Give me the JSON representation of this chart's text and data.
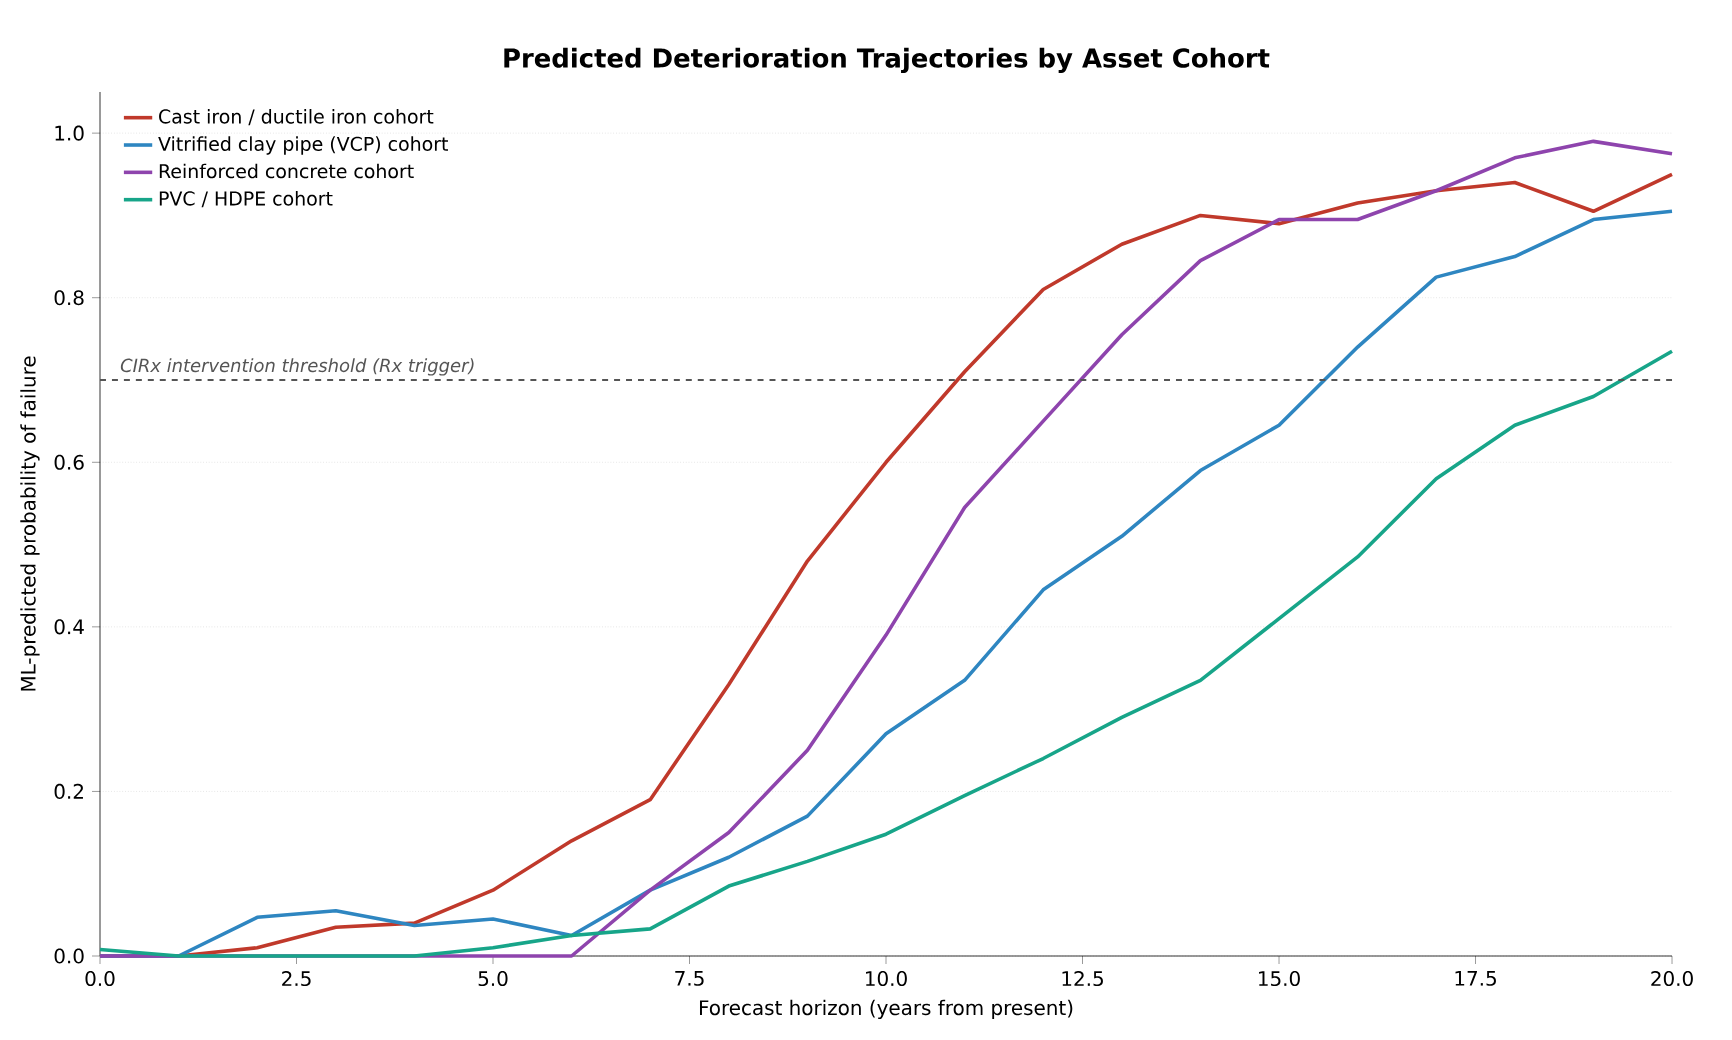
{
  "chart_data": {
    "type": "line",
    "title": "Predicted Deterioration Trajectories by Asset Cohort",
    "xlabel": "Forecast horizon (years from present)",
    "ylabel": "ML-predicted probability of failure",
    "x": [
      0,
      1,
      2,
      3,
      4,
      5,
      6,
      7,
      8,
      9,
      10,
      11,
      12,
      13,
      14,
      15,
      16,
      17,
      18,
      19,
      20
    ],
    "series": [
      {
        "name": "Cast iron / ductile iron cohort",
        "color": "#c0392b",
        "values": [
          0,
          0,
          0.01,
          0.035,
          0.04,
          0.08,
          0.14,
          0.19,
          0.33,
          0.48,
          0.6,
          0.71,
          0.81,
          0.865,
          0.9,
          0.89,
          0.915,
          0.93,
          0.94,
          0.905,
          0.95
        ]
      },
      {
        "name": "Vitrified clay pipe (VCP) cohort",
        "color": "#2e86c1",
        "values": [
          0,
          0,
          0.047,
          0.055,
          0.037,
          0.045,
          0.025,
          0.08,
          0.12,
          0.17,
          0.27,
          0.335,
          0.445,
          0.51,
          0.59,
          0.645,
          0.74,
          0.825,
          0.85,
          0.895,
          0.905
        ]
      },
      {
        "name": "Reinforced concrete cohort",
        "color": "#8e44ad",
        "values": [
          0,
          0,
          0,
          0,
          0,
          0,
          0,
          0.08,
          0.15,
          0.25,
          0.39,
          0.545,
          0.65,
          0.755,
          0.845,
          0.895,
          0.895,
          0.93,
          0.97,
          0.99,
          0.975
        ]
      },
      {
        "name": "PVC / HDPE cohort",
        "color": "#17a589",
        "values": [
          0.008,
          0,
          0,
          0,
          0,
          0.01,
          0.025,
          0.033,
          0.085,
          0.115,
          0.148,
          0.195,
          0.24,
          0.29,
          0.335,
          0.41,
          0.485,
          0.58,
          0.645,
          0.68,
          0.735
        ]
      }
    ],
    "xlim": [
      0,
      20
    ],
    "xticks": [
      {
        "value": 0,
        "label": "0.0"
      },
      {
        "value": 2.5,
        "label": "2.5"
      },
      {
        "value": 5,
        "label": "5.0"
      },
      {
        "value": 7.5,
        "label": "7.5"
      },
      {
        "value": 10,
        "label": "10.0"
      },
      {
        "value": 12.5,
        "label": "12.5"
      },
      {
        "value": 15,
        "label": "15.0"
      },
      {
        "value": 17.5,
        "label": "17.5"
      },
      {
        "value": 20,
        "label": "20.0"
      }
    ],
    "ylim": [
      0,
      1.05
    ],
    "yticks": [
      {
        "value": 0,
        "label": "0.0"
      },
      {
        "value": 0.2,
        "label": "0.2"
      },
      {
        "value": 0.4,
        "label": "0.4"
      },
      {
        "value": 0.6,
        "label": "0.6"
      },
      {
        "value": 0.8,
        "label": "0.8"
      },
      {
        "value": 1,
        "label": "1.0"
      }
    ],
    "ref_lines": [
      {
        "axis": "y",
        "value": 0.7,
        "label": "CIRx intervention threshold (Rx trigger)",
        "color": "#555555",
        "line_style": "dashed"
      }
    ],
    "grid": "y",
    "legend": "top left",
    "marker": "none",
    "line_style": "solid"
  }
}
